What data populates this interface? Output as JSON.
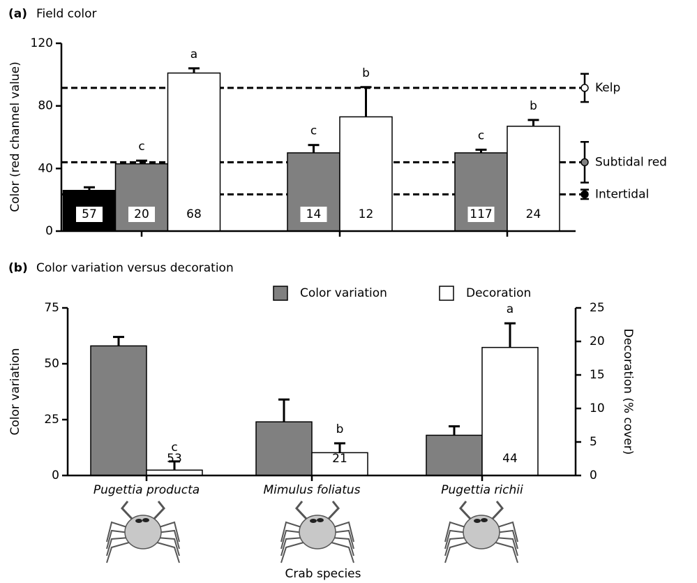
{
  "chart_data": [
    {
      "type": "bar",
      "panel_label": "(a)",
      "title": "Field color",
      "y_label": "Color (red channel value)",
      "ylim": [
        0,
        120
      ],
      "yticks": [
        0,
        40,
        80,
        120
      ],
      "categories": [
        null,
        null,
        null
      ],
      "series": [
        {
          "color": "#000000",
          "values": [
            26,
            null,
            null
          ],
          "errors": [
            2,
            null,
            null
          ],
          "n": [
            57,
            null,
            null
          ]
        },
        {
          "color": "#808080",
          "values": [
            43,
            50,
            50
          ],
          "errors": [
            2,
            5,
            2
          ],
          "letters": [
            "c",
            "c",
            "c"
          ],
          "n": [
            20,
            14,
            117
          ]
        },
        {
          "color": "#ffffff",
          "values": [
            101,
            73,
            67
          ],
          "errors": [
            3,
            19,
            4
          ],
          "letters": [
            "a",
            "b",
            "b"
          ],
          "n": [
            68,
            12,
            24
          ]
        }
      ],
      "reference_lines": [
        {
          "name": "Kelp",
          "value": 91.5,
          "error": 9,
          "color": "#ffffff"
        },
        {
          "name": "Subtidal red",
          "value": 44,
          "error": 13,
          "color": "#808080"
        },
        {
          "name": "Intertidal",
          "value": 23.5,
          "error": 3,
          "color": "#000000"
        }
      ]
    },
    {
      "type": "bar",
      "panel_label": "(b)",
      "title": "Color variation versus decoration",
      "y_label": "Color variation",
      "y2_label": "Decoration (% cover)",
      "x_label": "Crab species",
      "categories": [
        "Pugettia producta",
        "Mimulus foliatus",
        "Pugettia richii"
      ],
      "ylim": [
        0,
        75
      ],
      "yticks": [
        0,
        25,
        50,
        75
      ],
      "y2lim": [
        0,
        25
      ],
      "y2ticks": [
        0,
        5,
        10,
        15,
        20,
        25
      ],
      "series": [
        {
          "name": "Color variation",
          "color": "#808080",
          "values": [
            58,
            24,
            18
          ],
          "errors": [
            4,
            10,
            4
          ]
        },
        {
          "name": "Decoration",
          "color": "#ffffff",
          "axis": "y2",
          "values": [
            0.8,
            3.4,
            19.1
          ],
          "errors": [
            1.3,
            1.4,
            3.6
          ],
          "letters": [
            "c",
            "b",
            "a"
          ],
          "n": [
            53,
            21,
            44
          ]
        }
      ]
    }
  ]
}
